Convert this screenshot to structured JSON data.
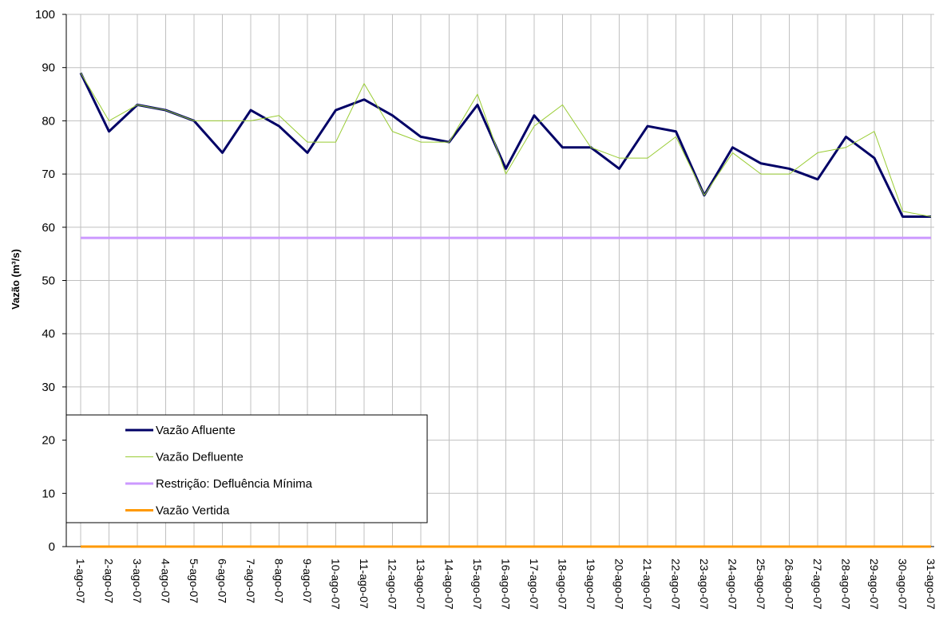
{
  "chart_data": {
    "type": "line",
    "y_label": "Vazão (m³/s)",
    "categories": [
      "1-ago-07",
      "2-ago-07",
      "3-ago-07",
      "4-ago-07",
      "5-ago-07",
      "6-ago-07",
      "7-ago-07",
      "8-ago-07",
      "9-ago-07",
      "10-ago-07",
      "11-ago-07",
      "12-ago-07",
      "13-ago-07",
      "14-ago-07",
      "15-ago-07",
      "16-ago-07",
      "17-ago-07",
      "18-ago-07",
      "19-ago-07",
      "20-ago-07",
      "21-ago-07",
      "22-ago-07",
      "23-ago-07",
      "24-ago-07",
      "25-ago-07",
      "26-ago-07",
      "27-ago-07",
      "28-ago-07",
      "29-ago-07",
      "30-ago-07",
      "31-ago-07"
    ],
    "series": [
      {
        "name": "Vazão Afluente",
        "color": "#000066",
        "width": 3,
        "values": [
          89,
          78,
          83,
          82,
          80,
          74,
          82,
          79,
          74,
          82,
          84,
          81,
          77,
          76,
          83,
          71,
          81,
          75,
          75,
          71,
          79,
          78,
          66,
          75,
          72,
          71,
          69,
          77,
          73,
          62,
          62
        ]
      },
      {
        "name": "Vazão Defluente",
        "color": "#99cc33",
        "width": 1,
        "values": [
          89,
          80,
          83,
          82,
          80,
          80,
          80,
          81,
          76,
          76,
          87,
          78,
          76,
          76,
          85,
          70,
          79,
          83,
          75,
          73,
          73,
          77,
          66,
          74,
          70,
          70,
          74,
          75,
          78,
          63,
          62
        ]
      },
      {
        "name": "Restrição: Defluência Mínima",
        "color": "#cc99ff",
        "width": 3,
        "values": [
          58,
          58,
          58,
          58,
          58,
          58,
          58,
          58,
          58,
          58,
          58,
          58,
          58,
          58,
          58,
          58,
          58,
          58,
          58,
          58,
          58,
          58,
          58,
          58,
          58,
          58,
          58,
          58,
          58,
          58,
          58
        ]
      },
      {
        "name": "Vazão Vertida",
        "color": "#ff9900",
        "width": 3,
        "values": [
          0,
          0,
          0,
          0,
          0,
          0,
          0,
          0,
          0,
          0,
          0,
          0,
          0,
          0,
          0,
          0,
          0,
          0,
          0,
          0,
          0,
          0,
          0,
          0,
          0,
          0,
          0,
          0,
          0,
          0,
          0
        ]
      }
    ],
    "ylim": [
      0,
      100
    ],
    "yticks": [
      0,
      10,
      20,
      30,
      40,
      50,
      60,
      70,
      80,
      90,
      100
    ],
    "grid": true
  }
}
